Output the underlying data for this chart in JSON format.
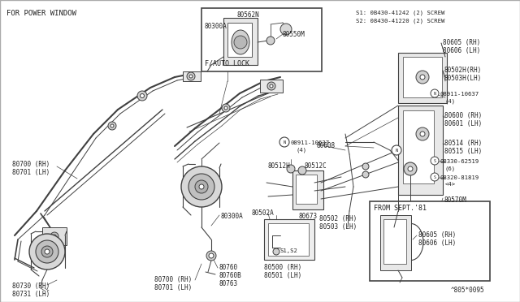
{
  "bg_color": "#f5f3ef",
  "line_color": "#404040",
  "text_color": "#222222",
  "fig_width": 6.4,
  "fig_height": 3.72,
  "top_left_label": "FOR POWER WINDOW",
  "bottom_right_label": "^805*0095",
  "s1_s2_label": "S1: 0B430-41242 (2) SCREW\nS2: 08430-41220 (2) SCREW"
}
